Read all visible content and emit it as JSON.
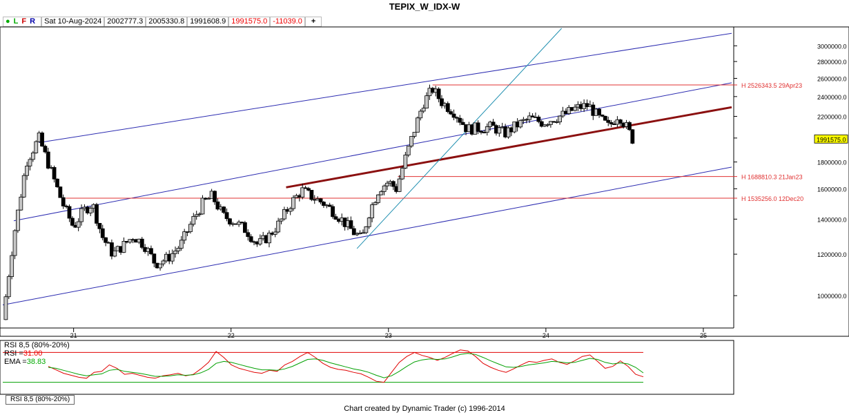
{
  "title": "TEPIX_W_IDX-W",
  "infobar": {
    "dot": "●",
    "l": "L",
    "f": "F",
    "r": "R",
    "date": "Sat 10-Aug-2024",
    "open": "2002777.3",
    "high": "2005330.8",
    "low": "1991608.9",
    "close": "1991575.0",
    "change": "-11039.0",
    "plus": "+"
  },
  "colors": {
    "up": "#c8c8c8",
    "down": "#000000",
    "channel": "#2a2ab0",
    "trend": "#8b1010",
    "hline": "#e03030",
    "fan": "#1f8fb0"
  },
  "chart_data": [
    {
      "type": "candlestick",
      "title": "TEPIX_W_IDX-W",
      "y_ticks": [
        "3000000.0",
        "2800000.0",
        "2600000.0",
        "2400000.0",
        "2200000.0",
        "2000000.0",
        "1800000.0",
        "1600000.0",
        "1400000.0",
        "1200000.0",
        "1000000.0"
      ],
      "x_ticks": [
        "21",
        "22",
        "23",
        "24",
        "25"
      ],
      "ylim": [
        870000,
        3250000
      ],
      "xlim": [
        2020.55,
        2025.18
      ],
      "last_price_label": "1991575.0",
      "last_price": 1991575.0,
      "horizontal_levels": [
        {
          "label": "H 2526343.5 29Apr23",
          "value": 2526343.5,
          "start_x": 2023.28
        },
        {
          "label": "H 1688810.3 21Jan23",
          "value": 1688810.3,
          "start_x": 2023.06
        },
        {
          "label": "H 1535256.0 12Dec20",
          "value": 1535256.0,
          "start_x": 2020.95
        }
      ],
      "key_points": [
        [
          2020.55,
          900000
        ],
        [
          2020.62,
          1300000
        ],
        [
          2020.7,
          1800000
        ],
        [
          2020.78,
          2000000
        ],
        [
          2020.85,
          1750000
        ],
        [
          2020.93,
          1500000
        ],
        [
          2021.0,
          1350000
        ],
        [
          2021.06,
          1450000
        ],
        [
          2021.12,
          1500000
        ],
        [
          2021.18,
          1300000
        ],
        [
          2021.25,
          1200000
        ],
        [
          2021.32,
          1250000
        ],
        [
          2021.38,
          1300000
        ],
        [
          2021.45,
          1250000
        ],
        [
          2021.52,
          1150000
        ],
        [
          2021.6,
          1180000
        ],
        [
          2021.68,
          1250000
        ],
        [
          2021.75,
          1380000
        ],
        [
          2021.82,
          1500000
        ],
        [
          2021.88,
          1550000
        ],
        [
          2021.95,
          1420000
        ],
        [
          2022.03,
          1380000
        ],
        [
          2022.1,
          1330000
        ],
        [
          2022.17,
          1250000
        ],
        [
          2022.24,
          1300000
        ],
        [
          2022.31,
          1380000
        ],
        [
          2022.38,
          1500000
        ],
        [
          2022.45,
          1590000
        ],
        [
          2022.52,
          1540000
        ],
        [
          2022.59,
          1500000
        ],
        [
          2022.66,
          1440000
        ],
        [
          2022.72,
          1380000
        ],
        [
          2022.78,
          1320000
        ],
        [
          2022.83,
          1280000
        ],
        [
          2022.88,
          1450000
        ],
        [
          2022.94,
          1600000
        ],
        [
          2023.0,
          1650000
        ],
        [
          2023.05,
          1600000
        ],
        [
          2023.1,
          1800000
        ],
        [
          2023.16,
          2050000
        ],
        [
          2023.22,
          2330000
        ],
        [
          2023.28,
          2480000
        ],
        [
          2023.34,
          2340000
        ],
        [
          2023.42,
          2240000
        ],
        [
          2023.5,
          2080000
        ],
        [
          2023.58,
          2090000
        ],
        [
          2023.66,
          2100000
        ],
        [
          2023.74,
          2040000
        ],
        [
          2023.82,
          2120000
        ],
        [
          2023.9,
          2180000
        ],
        [
          2023.98,
          2140000
        ],
        [
          2024.05,
          2180000
        ],
        [
          2024.12,
          2220000
        ],
        [
          2024.19,
          2280000
        ],
        [
          2024.27,
          2310000
        ],
        [
          2024.34,
          2180000
        ],
        [
          2024.4,
          2100000
        ],
        [
          2024.46,
          2220000
        ],
        [
          2024.52,
          2080000
        ],
        [
          2024.55,
          1991575
        ]
      ],
      "lines": [
        {
          "name": "channel-upper",
          "points": [
            [
              2020.78,
              1960000
            ],
            [
              2025.18,
              3170000
            ]
          ]
        },
        {
          "name": "channel-middle",
          "points": [
            [
              2020.62,
              1390000
            ],
            [
              2025.18,
              2550000
            ]
          ]
        },
        {
          "name": "channel-lower",
          "points": [
            [
              2020.55,
              960000
            ],
            [
              2025.18,
              1760000
            ]
          ]
        },
        {
          "name": "trend-line",
          "points": [
            [
              2022.35,
              1610000
            ],
            [
              2025.18,
              2290000
            ]
          ]
        },
        {
          "name": "fan-line",
          "points": [
            [
              2022.8,
              1230000
            ],
            [
              2024.1,
              3240000
            ]
          ]
        }
      ]
    },
    {
      "type": "line",
      "title": "RSI 8,5 (80%-20%)",
      "rsi_label": "RSI =",
      "rsi_value": "31.00",
      "ema_label": "EMA =",
      "ema_value": "38.83",
      "tab_label": "RSI 8,5 (80%-20%)",
      "ylim": [
        0,
        100
      ],
      "levels": [
        80,
        20
      ],
      "series": [
        {
          "name": "RSI",
          "color": "#e00000",
          "values": [
            52,
            45,
            38,
            34,
            30,
            28,
            40,
            42,
            55,
            48,
            36,
            38,
            34,
            30,
            28,
            33,
            35,
            38,
            33,
            36,
            47,
            60,
            82,
            70,
            55,
            48,
            44,
            40,
            38,
            44,
            42,
            55,
            62,
            72,
            80,
            70,
            58,
            50,
            46,
            44,
            40,
            37,
            30,
            22,
            20,
            40,
            60,
            72,
            80,
            74,
            70,
            64,
            70,
            78,
            85,
            83,
            72,
            58,
            50,
            44,
            40,
            47,
            55,
            62,
            60,
            64,
            67,
            60,
            56,
            63,
            72,
            75,
            62,
            48,
            52,
            63,
            52,
            36,
            31
          ]
        },
        {
          "name": "EMA",
          "color": "#00a000",
          "values": [
            50,
            48,
            44,
            40,
            36,
            33,
            35,
            37,
            44,
            46,
            42,
            40,
            38,
            35,
            32,
            32,
            33,
            35,
            34,
            35,
            39,
            46,
            58,
            62,
            60,
            56,
            52,
            48,
            45,
            45,
            44,
            47,
            52,
            59,
            66,
            67,
            64,
            59,
            55,
            51,
            47,
            44,
            40,
            34,
            29,
            33,
            42,
            52,
            61,
            65,
            67,
            66,
            67,
            71,
            76,
            78,
            76,
            70,
            63,
            57,
            51,
            50,
            52,
            55,
            57,
            59,
            62,
            61,
            59,
            60,
            64,
            68,
            66,
            60,
            57,
            59,
            57,
            50,
            38.83
          ]
        }
      ]
    }
  ],
  "footer": "Chart created by Dynamic Trader  (c) 1996-2014"
}
